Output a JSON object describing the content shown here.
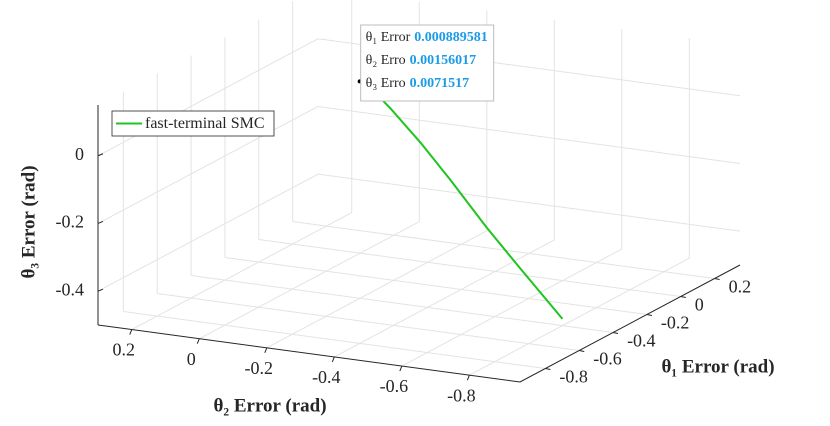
{
  "chart_data": {
    "type": "line3d",
    "xlabel": "θ₁ Error (rad)",
    "ylabel": "θ₂ Error (rad)",
    "zlabel": "θ₃ Error (rad)",
    "xlim": [
      -0.95,
      0.35
    ],
    "ylim": [
      -0.95,
      0.3
    ],
    "zlim": [
      -0.5,
      0.15
    ],
    "xticks": [
      -0.8,
      -0.6,
      -0.4,
      -0.2,
      0,
      0.2
    ],
    "yticks": [
      -0.8,
      -0.6,
      -0.4,
      -0.2,
      0,
      0.2
    ],
    "zticks": [
      -0.4,
      -0.2,
      0
    ],
    "grid": true,
    "legend": "upper left",
    "series": [
      {
        "name": "fast-terminal SMC",
        "color": "#1fc41f",
        "x": [
          0.000889581,
          -0.02,
          -0.06,
          -0.12,
          -0.18,
          -0.25,
          -0.32,
          -0.4
        ],
        "y": [
          0.00156017,
          -0.04,
          -0.12,
          -0.24,
          -0.36,
          -0.5,
          -0.64,
          -0.8
        ],
        "z": [
          0.0071517,
          0.0,
          -0.04,
          -0.11,
          -0.19,
          -0.29,
          -0.38,
          -0.48
        ]
      }
    ],
    "datatip_labels": [
      "θ₁ Error",
      "θ₂ Erro",
      "θ₃ Erro"
    ]
  }
}
